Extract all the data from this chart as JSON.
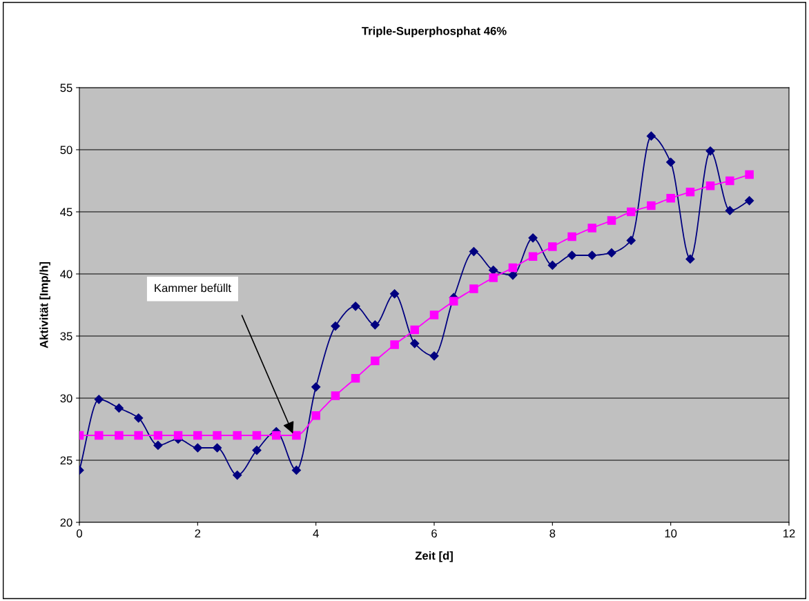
{
  "chart_data": {
    "type": "line",
    "title": "Triple-Superphosphat 46%",
    "xlabel": "Zeit [d]",
    "ylabel": "Aktivität [Imp/h]",
    "xlim": [
      0,
      12
    ],
    "xticks": [
      0,
      2,
      4,
      6,
      8,
      10,
      12
    ],
    "ylim": [
      20,
      55
    ],
    "yticks": [
      20,
      25,
      30,
      35,
      40,
      45,
      50,
      55
    ],
    "grid": "y",
    "legend": false,
    "annotations": [
      "Kammer befüllt"
    ],
    "series": [
      {
        "color": "#000080",
        "marker": "diamond",
        "x": [
          0,
          0.33,
          0.67,
          1,
          1.33,
          1.67,
          2,
          2.33,
          2.67,
          3,
          3.33,
          3.67,
          4,
          4.33,
          4.67,
          5,
          5.33,
          5.67,
          6,
          6.33,
          6.67,
          7,
          7.33,
          7.67,
          8,
          8.33,
          8.67,
          9,
          9.33,
          9.67,
          10,
          10.33,
          10.67,
          11,
          11.33
        ],
        "values": [
          24.2,
          29.9,
          29.2,
          28.4,
          26.2,
          26.7,
          26.0,
          26.0,
          23.8,
          25.8,
          27.3,
          24.2,
          30.9,
          35.8,
          37.4,
          35.9,
          38.4,
          34.4,
          33.4,
          38.1,
          41.8,
          40.3,
          39.9,
          42.9,
          40.7,
          41.5,
          41.5,
          41.7,
          42.7,
          51.1,
          49.0,
          41.2,
          49.9,
          45.1,
          45.9
        ]
      },
      {
        "color": "#ff00ff",
        "marker": "square",
        "x": [
          0,
          0.33,
          0.67,
          1,
          1.33,
          1.67,
          2,
          2.33,
          2.67,
          3,
          3.33,
          3.67,
          4,
          4.33,
          4.67,
          5,
          5.33,
          5.67,
          6,
          6.33,
          6.67,
          7,
          7.33,
          7.67,
          8,
          8.33,
          8.67,
          9,
          9.33,
          9.67,
          10,
          10.33,
          10.67,
          11,
          11.33
        ],
        "values": [
          27,
          27,
          27,
          27,
          27,
          27,
          27,
          27,
          27,
          27,
          27,
          27,
          28.6,
          30.2,
          31.6,
          33.0,
          34.3,
          35.5,
          36.7,
          37.8,
          38.8,
          39.7,
          40.5,
          41.4,
          42.2,
          43.0,
          43.7,
          44.3,
          45.0,
          45.5,
          46.1,
          46.6,
          47.1,
          47.5,
          48.0
        ]
      }
    ]
  }
}
